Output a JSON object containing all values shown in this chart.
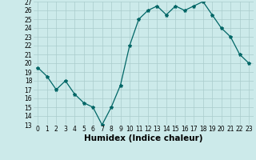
{
  "x": [
    0,
    1,
    2,
    3,
    4,
    5,
    6,
    7,
    8,
    9,
    10,
    11,
    12,
    13,
    14,
    15,
    16,
    17,
    18,
    19,
    20,
    21,
    22,
    23
  ],
  "y": [
    19.5,
    18.5,
    17.0,
    18.0,
    16.5,
    15.5,
    15.0,
    13.0,
    15.0,
    17.5,
    22.0,
    25.0,
    26.0,
    26.5,
    25.5,
    26.5,
    26.0,
    26.5,
    27.0,
    25.5,
    24.0,
    23.0,
    21.0,
    20.0
  ],
  "xlabel": "Humidex (Indice chaleur)",
  "ylim": [
    13,
    27
  ],
  "xlim": [
    -0.5,
    23.5
  ],
  "yticks": [
    13,
    14,
    15,
    16,
    17,
    18,
    19,
    20,
    21,
    22,
    23,
    24,
    25,
    26,
    27
  ],
  "xticks": [
    0,
    1,
    2,
    3,
    4,
    5,
    6,
    7,
    8,
    9,
    10,
    11,
    12,
    13,
    14,
    15,
    16,
    17,
    18,
    19,
    20,
    21,
    22,
    23
  ],
  "line_color": "#006666",
  "bg_color": "#cceaea",
  "grid_color": "#aacccc",
  "tick_fontsize": 5.5,
  "xlabel_fontsize": 7.5
}
